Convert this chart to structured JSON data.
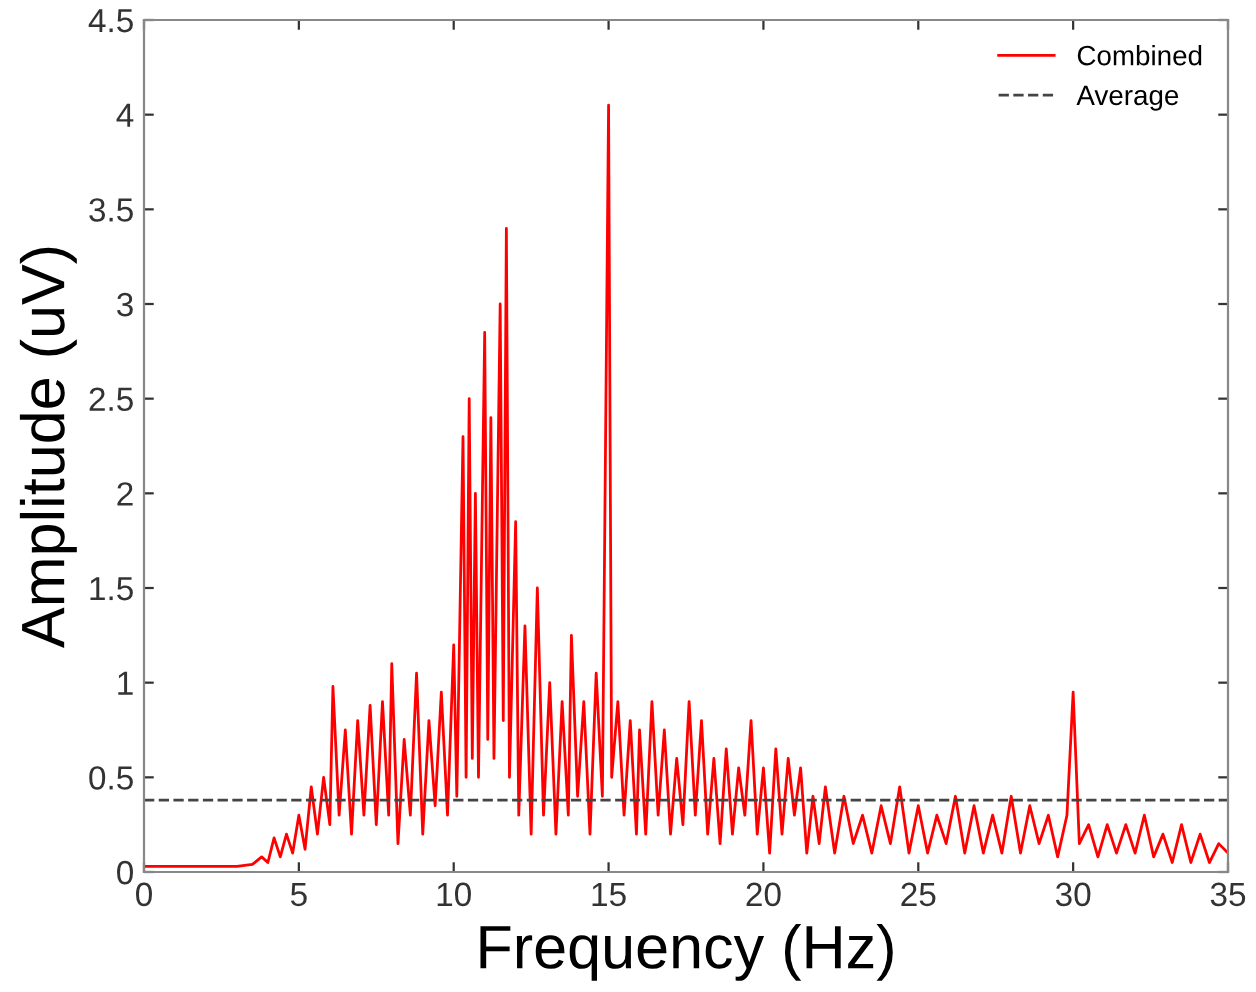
{
  "chart_data": {
    "type": "line",
    "xlabel": "Frequency (Hz)",
    "ylabel": "Amplitude (uV)",
    "xlim": [
      0,
      35
    ],
    "ylim": [
      0,
      4.5
    ],
    "xticks": [
      0,
      5,
      10,
      15,
      20,
      25,
      30,
      35
    ],
    "yticks": [
      0,
      0.5,
      1,
      1.5,
      2,
      2.5,
      3,
      3.5,
      4,
      4.5
    ],
    "grid": false,
    "legend": "top right",
    "series": [
      {
        "name": "Combined",
        "color": "#ff0000",
        "line_style": "solid",
        "x": [
          0,
          1,
          2,
          3,
          3.5,
          3.8,
          4.0,
          4.2,
          4.4,
          4.6,
          4.8,
          5.0,
          5.2,
          5.4,
          5.6,
          5.8,
          6.0,
          6.1,
          6.3,
          6.5,
          6.7,
          6.9,
          7.1,
          7.3,
          7.5,
          7.7,
          7.9,
          8.0,
          8.2,
          8.4,
          8.6,
          8.8,
          9.0,
          9.2,
          9.4,
          9.6,
          9.8,
          10.0,
          10.1,
          10.3,
          10.4,
          10.5,
          10.6,
          10.7,
          10.8,
          11.0,
          11.1,
          11.2,
          11.3,
          11.5,
          11.6,
          11.7,
          11.8,
          12.0,
          12.1,
          12.3,
          12.5,
          12.7,
          12.9,
          13.1,
          13.3,
          13.5,
          13.7,
          13.8,
          14.0,
          14.2,
          14.4,
          14.6,
          14.8,
          15.0,
          15.1,
          15.3,
          15.5,
          15.7,
          15.9,
          16.0,
          16.2,
          16.4,
          16.6,
          16.8,
          17.0,
          17.2,
          17.4,
          17.6,
          17.8,
          18.0,
          18.2,
          18.4,
          18.6,
          18.8,
          19.0,
          19.2,
          19.4,
          19.6,
          19.8,
          20.0,
          20.2,
          20.4,
          20.6,
          20.8,
          21.0,
          21.2,
          21.4,
          21.6,
          21.8,
          22.0,
          22.3,
          22.6,
          22.9,
          23.2,
          23.5,
          23.8,
          24.1,
          24.4,
          24.7,
          25.0,
          25.3,
          25.6,
          25.9,
          26.2,
          26.5,
          26.8,
          27.1,
          27.4,
          27.7,
          28.0,
          28.3,
          28.6,
          28.9,
          29.2,
          29.5,
          29.8,
          30.0,
          30.2,
          30.5,
          30.8,
          31.1,
          31.4,
          31.7,
          32.0,
          32.3,
          32.6,
          32.9,
          33.2,
          33.5,
          33.8,
          34.1,
          34.4,
          34.7,
          35
        ],
        "values": [
          0.03,
          0.03,
          0.03,
          0.03,
          0.04,
          0.08,
          0.05,
          0.18,
          0.08,
          0.2,
          0.1,
          0.3,
          0.12,
          0.45,
          0.2,
          0.5,
          0.25,
          0.98,
          0.3,
          0.75,
          0.2,
          0.8,
          0.3,
          0.88,
          0.25,
          0.9,
          0.3,
          1.1,
          0.15,
          0.7,
          0.3,
          1.05,
          0.2,
          0.8,
          0.35,
          0.95,
          0.3,
          1.2,
          0.4,
          2.3,
          0.5,
          2.5,
          0.6,
          2.0,
          0.5,
          2.85,
          0.7,
          2.4,
          0.6,
          3.0,
          0.8,
          3.4,
          0.5,
          1.85,
          0.3,
          1.3,
          0.2,
          1.5,
          0.3,
          1.0,
          0.2,
          0.9,
          0.3,
          1.25,
          0.4,
          0.9,
          0.2,
          1.05,
          0.4,
          4.05,
          0.5,
          0.9,
          0.3,
          0.8,
          0.2,
          0.75,
          0.2,
          0.9,
          0.3,
          0.75,
          0.2,
          0.6,
          0.25,
          0.9,
          0.3,
          0.8,
          0.2,
          0.6,
          0.15,
          0.65,
          0.2,
          0.55,
          0.3,
          0.8,
          0.2,
          0.55,
          0.1,
          0.65,
          0.2,
          0.6,
          0.3,
          0.55,
          0.1,
          0.4,
          0.15,
          0.45,
          0.1,
          0.4,
          0.15,
          0.3,
          0.1,
          0.35,
          0.15,
          0.45,
          0.1,
          0.35,
          0.1,
          0.3,
          0.15,
          0.4,
          0.1,
          0.35,
          0.1,
          0.3,
          0.1,
          0.4,
          0.1,
          0.35,
          0.15,
          0.3,
          0.08,
          0.3,
          0.95,
          0.15,
          0.25,
          0.08,
          0.25,
          0.1,
          0.25,
          0.1,
          0.3,
          0.08,
          0.2,
          0.05,
          0.25,
          0.05,
          0.2,
          0.05,
          0.15,
          0.1
        ]
      },
      {
        "name": "Average",
        "color": "#444444",
        "line_style": "dashed",
        "x": [
          0,
          35
        ],
        "values": [
          0.38,
          0.38
        ]
      }
    ]
  }
}
